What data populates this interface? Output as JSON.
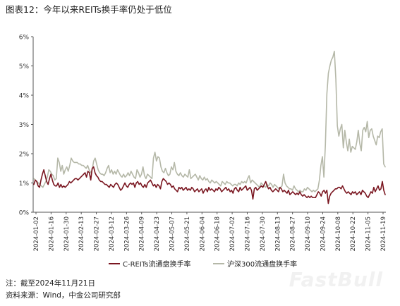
{
  "title": "图表12：今年以来REITs换手率仍处于低位",
  "footer": {
    "note": "注：截至2024年11月21日",
    "source": "资料来源：Wind，中金公司研究部"
  },
  "watermark": "FastBull",
  "chart_data": {
    "type": "line",
    "xlabel": "",
    "ylabel": "",
    "ylim": [
      0,
      6
    ],
    "yticks": [
      "0%",
      "1%",
      "2%",
      "3%",
      "4%",
      "5%",
      "6%"
    ],
    "x_tick_labels": [
      "2024-01-02",
      "2024-01-16",
      "2024-01-30",
      "2024-02-13",
      "2024-02-27",
      "2024-03-12",
      "2024-03-26",
      "2024-04-09",
      "2024-04-23",
      "2024-05-07",
      "2024-05-21",
      "2024-06-04",
      "2024-06-18",
      "2024-07-02",
      "2024-07-16",
      "2024-07-30",
      "2024-08-13",
      "2024-08-27",
      "2024-09-10",
      "2024-09-24",
      "2024-10-08",
      "2024-10-22",
      "2024-11-05",
      "2024-11-19"
    ],
    "legend_position": "bottom",
    "grid": false,
    "series": [
      {
        "name": "C-REITs流通盘换手率",
        "color": "#7a1620",
        "values": [
          0.95,
          1.1,
          1.05,
          0.9,
          0.85,
          1.1,
          1.3,
          1.45,
          1.25,
          1.05,
          0.95,
          1.15,
          1.3,
          1.1,
          0.95,
          0.9,
          0.9,
          1.0,
          0.85,
          0.95,
          0.85,
          0.9,
          0.85,
          0.9,
          0.95,
          1.05,
          1.0,
          1.05,
          1.1,
          1.15,
          1.15,
          1.1,
          1.15,
          1.2,
          1.25,
          1.3,
          1.35,
          1.2,
          1.4,
          1.35,
          1.1,
          1.5,
          1.55,
          1.35,
          1.25,
          1.2,
          1.1,
          1.05,
          1.05,
          1.0,
          0.95,
          0.95,
          0.9,
          0.85,
          0.95,
          0.9,
          0.85,
          0.95,
          1.0,
          0.95,
          0.85,
          0.75,
          0.8,
          0.9,
          1.0,
          0.9,
          0.85,
          0.95,
          1.0,
          0.95,
          1.0,
          0.85,
          1.0,
          1.05,
          0.95,
          1.0,
          0.9,
          0.85,
          0.95,
          0.85,
          1.0,
          1.05,
          1.1,
          1.0,
          0.9,
          0.95,
          0.85,
          0.95,
          0.9,
          0.8,
          1.05,
          1.15,
          1.1,
          1.05,
          0.95,
          1.0,
          0.95,
          0.85,
          0.9,
          0.8,
          0.75,
          0.7,
          0.85,
          0.8,
          0.85,
          0.75,
          0.8,
          0.85,
          0.75,
          0.8,
          0.75,
          0.85,
          0.8,
          0.7,
          0.75,
          0.8,
          0.7,
          0.75,
          0.8,
          0.65,
          0.75,
          0.8,
          0.7,
          0.85,
          0.75,
          0.8,
          0.75,
          0.7,
          0.8,
          0.75,
          0.85,
          0.8,
          0.7,
          0.75,
          0.8,
          0.85,
          0.75,
          0.8,
          0.7,
          0.75,
          0.65,
          0.8,
          0.85,
          0.75,
          0.7,
          0.85,
          0.75,
          0.8,
          0.85,
          0.9,
          0.75,
          0.8,
          0.85,
          0.75,
          0.45,
          0.8,
          0.85,
          0.75,
          0.8,
          0.85,
          0.9,
          0.85,
          0.95,
          1.05,
          0.9,
          0.8,
          0.85,
          0.75,
          0.7,
          0.75,
          0.8,
          0.75,
          0.7,
          0.85,
          0.8,
          0.7,
          0.75,
          0.7,
          0.65,
          0.75,
          0.6,
          0.65,
          0.7,
          0.65,
          0.6,
          0.65,
          0.6,
          0.7,
          0.6,
          0.55,
          0.6,
          0.55,
          0.5,
          0.55,
          0.5,
          0.55,
          0.5,
          0.5,
          0.5,
          0.6,
          0.7,
          0.65,
          0.55,
          0.7,
          0.75,
          0.65,
          0.75,
          0.3,
          0.55,
          0.65,
          0.7,
          0.75,
          0.8,
          0.8,
          0.85,
          0.85,
          0.8,
          0.9,
          0.8,
          0.7,
          0.65,
          0.7,
          0.65,
          0.6,
          0.7,
          0.65,
          0.7,
          0.6,
          0.65,
          0.7,
          0.6,
          0.75,
          0.7,
          0.65,
          0.55,
          0.5,
          0.6,
          0.7,
          0.65,
          0.85,
          0.7,
          0.8,
          0.9,
          0.75,
          0.8,
          1.05,
          0.75,
          0.6
        ]
      },
      {
        "name": "沪深300流通盘换手率",
        "color": "#b5b8a8",
        "values": [
          1.15,
          1.1,
          1.05,
          1.0,
          0.95,
          0.9,
          0.85,
          0.95,
          1.05,
          1.2,
          1.45,
          1.4,
          1.3,
          1.25,
          1.1,
          1.15,
          1.85,
          1.7,
          1.4,
          1.6,
          1.3,
          1.45,
          1.55,
          1.4,
          1.6,
          1.85,
          1.75,
          1.7,
          1.7,
          1.7,
          1.65,
          1.65,
          1.6,
          1.6,
          1.55,
          1.5,
          1.6,
          1.45,
          1.35,
          1.45,
          1.75,
          1.85,
          1.65,
          1.45,
          1.35,
          1.3,
          1.3,
          1.25,
          1.35,
          1.5,
          1.6,
          1.35,
          1.45,
          1.3,
          1.4,
          1.3,
          1.45,
          1.35,
          1.25,
          1.2,
          1.3,
          1.2,
          1.25,
          1.35,
          1.25,
          1.4,
          1.3,
          1.2,
          1.15,
          1.45,
          1.35,
          1.2,
          1.3,
          1.55,
          1.25,
          1.15,
          1.3,
          1.25,
          1.2,
          1.15,
          1.85,
          2.05,
          1.75,
          1.9,
          1.85,
          1.55,
          1.4,
          1.35,
          1.5,
          1.35,
          1.25,
          1.3,
          1.55,
          1.45,
          1.7,
          1.4,
          1.3,
          1.25,
          1.35,
          1.25,
          1.2,
          1.3,
          1.25,
          1.2,
          1.45,
          1.15,
          1.2,
          1.25,
          1.3,
          1.2,
          1.1,
          1.25,
          1.15,
          1.1,
          1.2,
          1.1,
          1.15,
          1.05,
          1.0,
          1.1,
          1.05,
          1.0,
          1.05,
          1.0,
          0.95,
          0.9,
          1.05,
          1.0,
          0.95,
          1.05,
          1.0,
          1.0,
          0.95,
          0.9,
          0.95,
          0.95,
          0.9,
          1.0,
          0.95,
          1.05,
          1.0,
          1.05,
          1.0,
          1.15,
          1.25,
          1.0,
          1.1,
          1.05,
          1.0,
          0.95,
          0.9,
          0.85,
          1.0,
          0.95,
          0.9,
          0.85,
          0.95,
          0.9,
          1.0,
          0.95,
          0.85,
          0.95,
          0.9,
          0.85,
          0.8,
          0.85,
          0.9,
          1.3,
          1.0,
          0.9,
          0.85,
          0.8,
          0.8,
          0.75,
          0.9,
          0.8,
          0.75,
          0.7,
          0.75,
          0.7,
          0.7,
          0.8,
          0.75,
          0.85,
          0.8,
          0.75,
          0.7,
          0.75,
          0.7,
          0.75,
          0.8,
          1.1,
          1.6,
          1.9,
          1.2,
          2.3,
          4.05,
          4.75,
          5.0,
          5.2,
          5.3,
          5.5,
          4.55,
          2.95,
          2.6,
          2.85,
          3.0,
          2.2,
          2.8,
          2.4,
          2.1,
          2.5,
          2.05,
          2.25,
          2.2,
          2.15,
          2.4,
          2.8,
          2.35,
          2.1,
          2.8,
          2.9,
          2.75,
          3.1,
          2.55,
          2.8,
          2.85,
          2.6,
          2.45,
          2.3,
          2.6,
          2.55,
          2.75,
          2.85,
          1.65,
          1.55
        ]
      }
    ]
  }
}
